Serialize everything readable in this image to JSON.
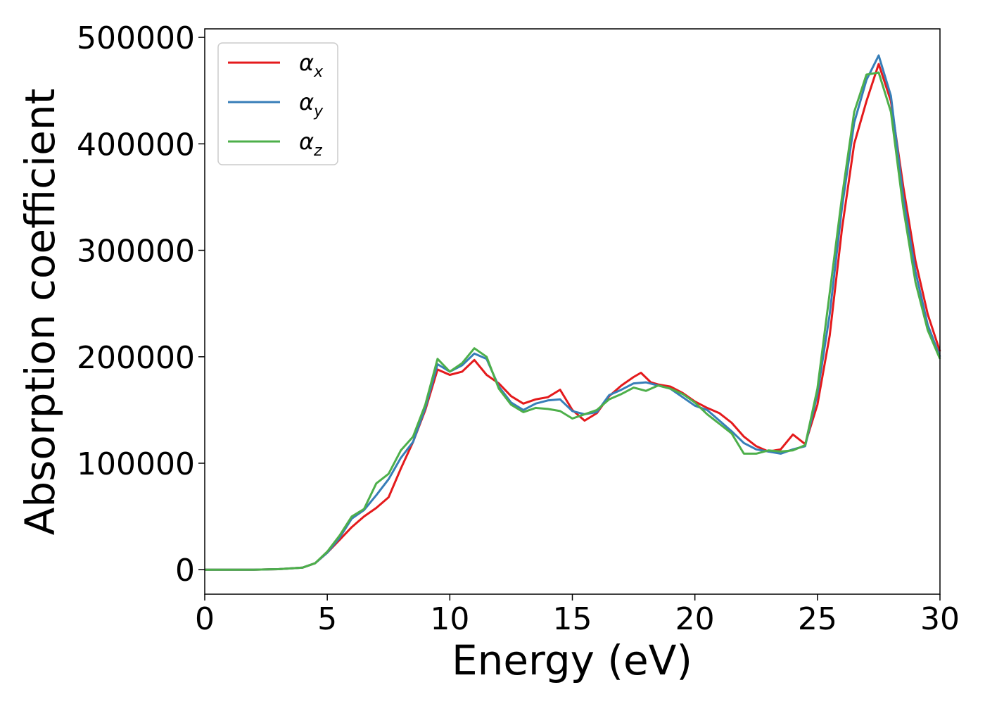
{
  "chart_data": {
    "type": "line",
    "title": "",
    "xlabel": "Energy (eV)",
    "ylabel": "Absorption coefficient",
    "xlim": [
      0,
      30
    ],
    "ylim": [
      -23000,
      508000
    ],
    "xticks": [
      "0",
      "5",
      "10",
      "15",
      "20",
      "25",
      "30"
    ],
    "yticks": [
      "0",
      "100000",
      "200000",
      "300000",
      "400000",
      "500000"
    ],
    "grid": false,
    "legend_position": "top-left",
    "legend": [
      {
        "symbol": "α",
        "sub": "x"
      },
      {
        "symbol": "α",
        "sub": "y"
      },
      {
        "symbol": "α",
        "sub": "z"
      }
    ],
    "series": [
      {
        "name": "αx",
        "color": "#e41a1c",
        "points": [
          [
            0,
            0
          ],
          [
            1,
            0
          ],
          [
            2,
            0
          ],
          [
            3,
            500
          ],
          [
            4,
            2000
          ],
          [
            4.5,
            6000
          ],
          [
            5,
            16000
          ],
          [
            5.5,
            28000
          ],
          [
            6,
            40000
          ],
          [
            6.5,
            50000
          ],
          [
            7,
            58000
          ],
          [
            7.5,
            68000
          ],
          [
            8,
            95000
          ],
          [
            8.5,
            120000
          ],
          [
            9,
            150000
          ],
          [
            9.5,
            188000
          ],
          [
            10,
            183000
          ],
          [
            10.5,
            186000
          ],
          [
            11,
            197000
          ],
          [
            11.5,
            183000
          ],
          [
            12,
            175000
          ],
          [
            12.5,
            163000
          ],
          [
            13,
            156000
          ],
          [
            13.5,
            160000
          ],
          [
            14,
            162000
          ],
          [
            14.5,
            169000
          ],
          [
            15,
            150000
          ],
          [
            15.5,
            140000
          ],
          [
            16,
            147000
          ],
          [
            16.5,
            163000
          ],
          [
            17,
            173000
          ],
          [
            17.5,
            181000
          ],
          [
            17.8,
            185000
          ],
          [
            18.2,
            176000
          ],
          [
            18.5,
            174000
          ],
          [
            19,
            172000
          ],
          [
            19.5,
            166000
          ],
          [
            20,
            158000
          ],
          [
            20.5,
            152000
          ],
          [
            21,
            147000
          ],
          [
            21.5,
            138000
          ],
          [
            22,
            125000
          ],
          [
            22.5,
            116000
          ],
          [
            23,
            111000
          ],
          [
            23.5,
            113000
          ],
          [
            24,
            127000
          ],
          [
            24.5,
            118000
          ],
          [
            25,
            155000
          ],
          [
            25.5,
            220000
          ],
          [
            26,
            320000
          ],
          [
            26.5,
            400000
          ],
          [
            27,
            440000
          ],
          [
            27.5,
            475000
          ],
          [
            28,
            440000
          ],
          [
            28.5,
            360000
          ],
          [
            29,
            290000
          ],
          [
            29.5,
            240000
          ],
          [
            30,
            205000
          ]
        ]
      },
      {
        "name": "αy",
        "color": "#377eb8",
        "points": [
          [
            0,
            0
          ],
          [
            1,
            0
          ],
          [
            2,
            0
          ],
          [
            3,
            500
          ],
          [
            4,
            2000
          ],
          [
            4.5,
            6000
          ],
          [
            5,
            16000
          ],
          [
            5.5,
            30000
          ],
          [
            6,
            48000
          ],
          [
            6.5,
            56000
          ],
          [
            7,
            70000
          ],
          [
            7.5,
            85000
          ],
          [
            8,
            105000
          ],
          [
            8.5,
            120000
          ],
          [
            9,
            152000
          ],
          [
            9.5,
            193000
          ],
          [
            10,
            186000
          ],
          [
            10.5,
            192000
          ],
          [
            11,
            203000
          ],
          [
            11.5,
            198000
          ],
          [
            12,
            172000
          ],
          [
            12.5,
            157000
          ],
          [
            13,
            150000
          ],
          [
            13.5,
            156000
          ],
          [
            14,
            159000
          ],
          [
            14.5,
            160000
          ],
          [
            15,
            149000
          ],
          [
            15.5,
            146000
          ],
          [
            16,
            148000
          ],
          [
            16.5,
            164000
          ],
          [
            17,
            169000
          ],
          [
            17.5,
            175000
          ],
          [
            18,
            176000
          ],
          [
            18.5,
            173000
          ],
          [
            19,
            170000
          ],
          [
            19.5,
            162000
          ],
          [
            20,
            154000
          ],
          [
            20.5,
            150000
          ],
          [
            21,
            140000
          ],
          [
            21.5,
            130000
          ],
          [
            22,
            119000
          ],
          [
            22.5,
            113000
          ],
          [
            23,
            111000
          ],
          [
            23.5,
            109000
          ],
          [
            24,
            113000
          ],
          [
            24.5,
            116000
          ],
          [
            25,
            165000
          ],
          [
            25.5,
            240000
          ],
          [
            26,
            340000
          ],
          [
            26.5,
            420000
          ],
          [
            27,
            460000
          ],
          [
            27.5,
            483000
          ],
          [
            28,
            445000
          ],
          [
            28.5,
            350000
          ],
          [
            29,
            280000
          ],
          [
            29.5,
            230000
          ],
          [
            30,
            200000
          ]
        ]
      },
      {
        "name": "αz",
        "color": "#4daf4a",
        "points": [
          [
            0,
            0
          ],
          [
            1,
            0
          ],
          [
            2,
            0
          ],
          [
            3,
            500
          ],
          [
            4,
            2000
          ],
          [
            4.5,
            6000
          ],
          [
            5,
            17000
          ],
          [
            5.5,
            32000
          ],
          [
            6,
            50000
          ],
          [
            6.5,
            57000
          ],
          [
            7,
            81000
          ],
          [
            7.5,
            90000
          ],
          [
            8,
            112000
          ],
          [
            8.5,
            125000
          ],
          [
            9,
            155000
          ],
          [
            9.5,
            198000
          ],
          [
            10,
            186000
          ],
          [
            10.5,
            194000
          ],
          [
            11,
            208000
          ],
          [
            11.5,
            200000
          ],
          [
            12,
            170000
          ],
          [
            12.5,
            155000
          ],
          [
            13,
            148000
          ],
          [
            13.5,
            152000
          ],
          [
            14,
            151000
          ],
          [
            14.5,
            149000
          ],
          [
            15,
            142000
          ],
          [
            15.5,
            146000
          ],
          [
            16,
            150000
          ],
          [
            16.5,
            160000
          ],
          [
            17,
            165000
          ],
          [
            17.5,
            171000
          ],
          [
            18,
            168000
          ],
          [
            18.5,
            173000
          ],
          [
            19,
            170000
          ],
          [
            19.5,
            165000
          ],
          [
            20,
            157000
          ],
          [
            20.5,
            146000
          ],
          [
            21,
            137000
          ],
          [
            21.5,
            128000
          ],
          [
            22,
            109000
          ],
          [
            22.5,
            109000
          ],
          [
            23,
            112000
          ],
          [
            23.5,
            111000
          ],
          [
            24,
            112000
          ],
          [
            24.5,
            117000
          ],
          [
            25,
            170000
          ],
          [
            25.5,
            260000
          ],
          [
            26,
            350000
          ],
          [
            26.5,
            430000
          ],
          [
            27,
            465000
          ],
          [
            27.5,
            467000
          ],
          [
            28,
            430000
          ],
          [
            28.5,
            340000
          ],
          [
            29,
            270000
          ],
          [
            29.5,
            225000
          ],
          [
            30,
            198000
          ]
        ]
      }
    ]
  }
}
